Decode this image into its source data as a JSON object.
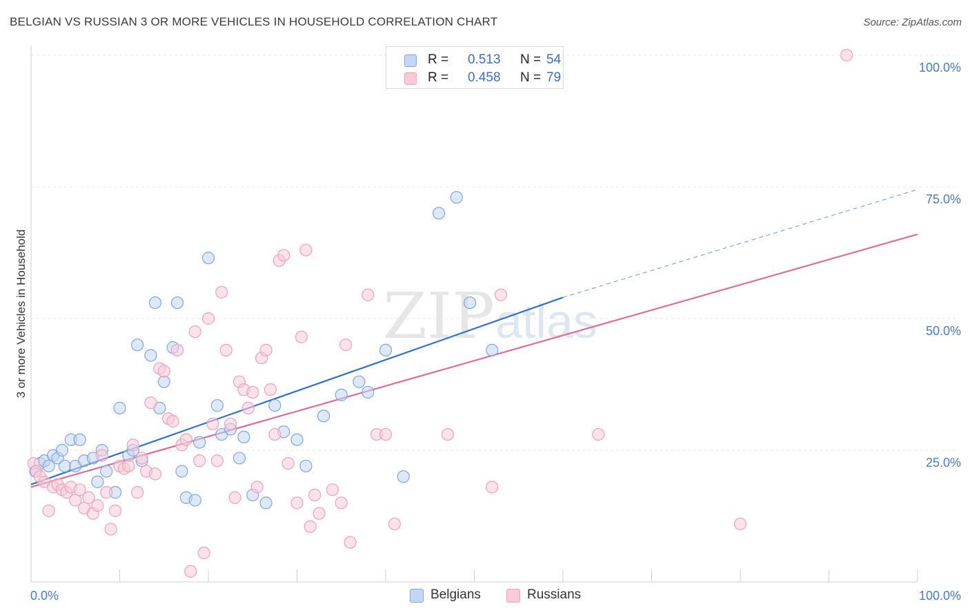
{
  "title": "BELGIAN VS RUSSIAN 3 OR MORE VEHICLES IN HOUSEHOLD CORRELATION CHART",
  "source": "Source: ZipAtlas.com",
  "watermark": {
    "zip": "ZIP",
    "atlas": "atlas"
  },
  "legend": {
    "r_label": "R = ",
    "n_label": "N = ",
    "rows": [
      {
        "r": "0.513",
        "n": "54",
        "color": "#7ea6e0",
        "fill": "#c3d6f3"
      },
      {
        "r": "0.458",
        "n": "79",
        "color": "#f0a0b8",
        "fill": "#f9cbd8"
      }
    ]
  },
  "bottom_legend": [
    {
      "label": "Belgians",
      "color": "#7ea6e0",
      "fill": "#c3d6f3"
    },
    {
      "label": "Russians",
      "color": "#f0a0b8",
      "fill": "#f9cbd8"
    }
  ],
  "chart_data": {
    "type": "scatter",
    "title": "BELGIAN VS RUSSIAN 3 OR MORE VEHICLES IN HOUSEHOLD CORRELATION CHART",
    "xlabel": "",
    "ylabel": "3 or more Vehicles in Household",
    "xlim": [
      0,
      100
    ],
    "ylim": [
      0,
      100
    ],
    "x_tick_labels": [
      "0.0%",
      "100.0%"
    ],
    "y_ticks": [
      25,
      50,
      75,
      100
    ],
    "y_tick_labels": [
      "25.0%",
      "50.0%",
      "75.0%",
      "100.0%"
    ],
    "grid": true,
    "legend_position": "top-center",
    "series": [
      {
        "name": "Belgians",
        "color": "#7ea6e0",
        "fill": "#c3d6f3",
        "line_color": "#2f6fcf",
        "trend": {
          "x": [
            0,
            60
          ],
          "y": [
            18.5,
            54
          ],
          "dashed_to": {
            "x": 100,
            "y": 74.5
          }
        },
        "x": [
          0.5,
          1.0,
          1.5,
          2.0,
          2.5,
          3.0,
          3.5,
          3.8,
          4.5,
          5.0,
          5.5,
          6.0,
          7.0,
          7.5,
          8.0,
          8.5,
          9.5,
          10.0,
          11.0,
          11.5,
          12.0,
          12.5,
          13.5,
          14.0,
          14.5,
          15.0,
          16.0,
          16.5,
          17.0,
          17.5,
          18.5,
          19.0,
          20.0,
          21.0,
          21.5,
          22.5,
          23.5,
          24.0,
          25.0,
          26.5,
          27.5,
          28.5,
          30.0,
          31.0,
          33.0,
          35.0,
          37.0,
          38.0,
          40.0,
          42.0,
          46.0,
          48.0,
          49.5,
          52.0
        ],
        "y": [
          21,
          22.5,
          23,
          22,
          24,
          23.5,
          25,
          22,
          27,
          22,
          27,
          23,
          23.5,
          19,
          25,
          21,
          17,
          33,
          24,
          25,
          45,
          23,
          43,
          53,
          33,
          38,
          44.5,
          53,
          21,
          16,
          15.5,
          26.5,
          61.5,
          33.5,
          28,
          29,
          23.5,
          27.5,
          16.5,
          15,
          33.5,
          28.5,
          27,
          22,
          31.5,
          35.5,
          38,
          36,
          44,
          20,
          70,
          73,
          53,
          44
        ]
      },
      {
        "name": "Russians",
        "color": "#f0a0b8",
        "fill": "#f9cbd8",
        "line_color": "#e06b95",
        "trend": {
          "x": [
            0,
            100
          ],
          "y": [
            18,
            66
          ]
        },
        "x": [
          0.3,
          0.6,
          1.0,
          1.5,
          2.0,
          2.5,
          3.0,
          3.5,
          4.0,
          4.5,
          5.0,
          5.5,
          6.0,
          6.5,
          7.0,
          7.5,
          8.0,
          8.5,
          9.0,
          9.5,
          10.0,
          10.5,
          11.0,
          11.5,
          12.0,
          12.5,
          13.0,
          13.5,
          14.0,
          14.5,
          15.0,
          15.5,
          16.0,
          16.5,
          17.0,
          17.5,
          18.0,
          18.5,
          19.0,
          19.5,
          20.0,
          20.5,
          21.0,
          21.5,
          22.0,
          22.5,
          23.0,
          23.5,
          24.0,
          24.5,
          25.0,
          25.5,
          26.0,
          26.5,
          27.0,
          27.5,
          28.0,
          28.5,
          29.0,
          30.0,
          30.5,
          31.0,
          31.5,
          32.0,
          32.5,
          34.0,
          35.0,
          35.5,
          36.0,
          38.0,
          39.0,
          40.0,
          41.0,
          47.0,
          52.0,
          53.0,
          64.0,
          80.0,
          92.0
        ],
        "y": [
          22.5,
          21,
          20,
          19,
          13.5,
          18,
          18.5,
          17.5,
          17,
          18,
          15.5,
          17.5,
          14,
          16,
          13,
          14.5,
          24,
          17,
          10,
          13.5,
          22,
          21.5,
          22,
          26,
          17,
          23.5,
          21,
          34,
          20.5,
          40.5,
          40,
          31,
          30.5,
          44,
          26,
          27,
          2,
          47.5,
          23,
          5.5,
          50,
          30,
          23,
          55,
          44,
          30,
          16,
          38,
          36.5,
          33,
          36,
          18,
          42.5,
          44,
          36.5,
          28,
          61,
          62,
          22.5,
          15,
          46.5,
          63,
          10.5,
          16.5,
          13,
          17.5,
          15,
          45,
          7.5,
          54.5,
          28,
          28,
          11,
          28,
          18,
          54.5,
          28,
          11,
          100
        ]
      }
    ]
  }
}
